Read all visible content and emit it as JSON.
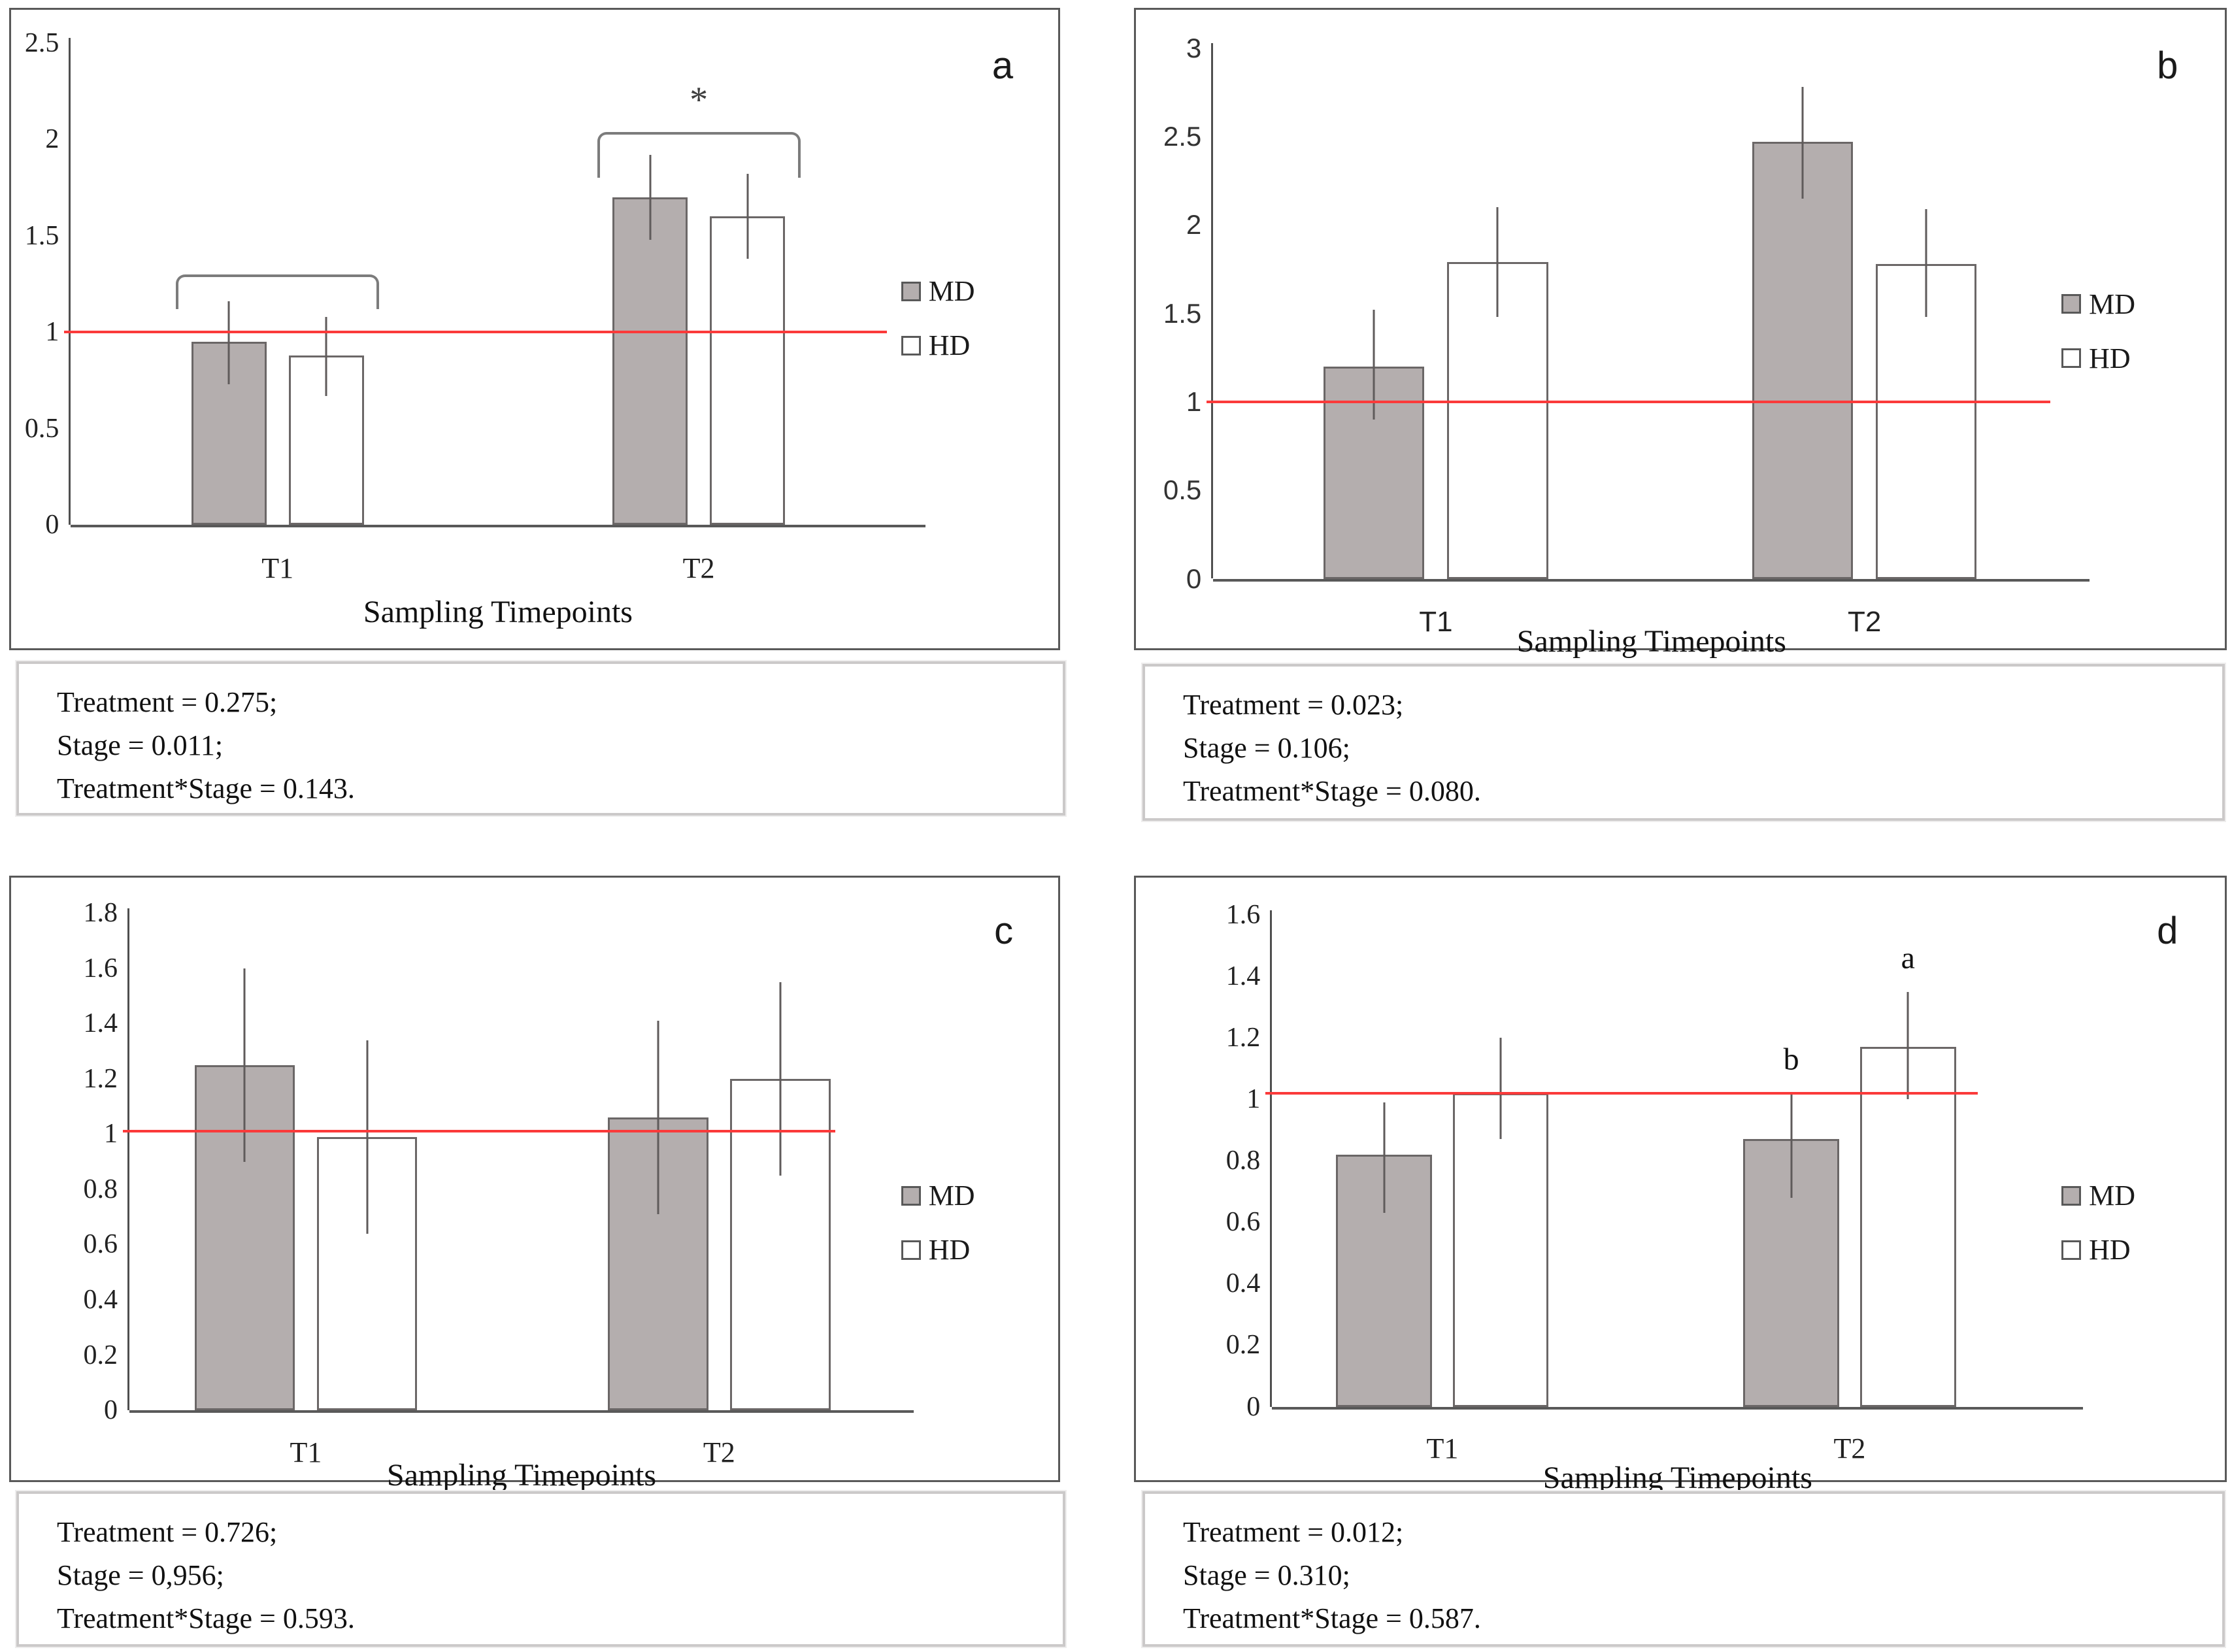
{
  "figure": {
    "description": "Four-panel bar figure comparing MD and HD treatments at two sampling timepoints",
    "legend": {
      "position": "right",
      "entries": [
        {
          "label": "MD",
          "fill": "#b4aeae"
        },
        {
          "label": "HD",
          "fill": "#ffffff"
        }
      ]
    },
    "colors": {
      "bar_fill_md": "#b4aeae",
      "bar_fill_hd": "#ffffff",
      "bar_border": "#6b6767",
      "error_bar": "#5f5b5b",
      "reference_line": "#fb3a3a",
      "axis": "#4f4f4f",
      "bracket": "#7c7c7c",
      "frame_border": "#595959",
      "stat_box_border": "#cbc9c9"
    }
  },
  "chart_data": [
    {
      "type": "bar",
      "panel_letter": "a",
      "xlabel": "Sampling Timepoints",
      "categories": [
        "T1",
        "T2"
      ],
      "series": [
        {
          "name": "MD",
          "values": [
            0.95,
            1.7
          ],
          "err_low": [
            0.73,
            1.48
          ],
          "err_high": [
            1.16,
            1.92
          ]
        },
        {
          "name": "HD",
          "values": [
            0.88,
            1.6
          ],
          "err_low": [
            0.67,
            1.38
          ],
          "err_high": [
            1.08,
            1.82
          ]
        }
      ],
      "ylim": [
        0,
        2.5
      ],
      "yticks": [
        {
          "v": 0,
          "label": "0"
        },
        {
          "v": 0.5,
          "label": "0.5"
        },
        {
          "v": 1,
          "label": "1"
        },
        {
          "v": 1.5,
          "label": "1.5"
        },
        {
          "v": 2,
          "label": "2"
        },
        {
          "v": 2.5,
          "label": "2.5"
        }
      ],
      "reference_line": 1.0,
      "tick_font": "serif",
      "grid": false,
      "annotations": {
        "brackets": [
          {
            "category": "T1",
            "y": 1.3,
            "drop": 0.18,
            "label": ""
          },
          {
            "category": "T2",
            "y": 2.04,
            "drop": 0.24,
            "label": "*"
          }
        ],
        "bar_labels": []
      },
      "stats": [
        "Treatment = 0.275;",
        "Stage = 0.011;",
        "Treatment*Stage = 0.143."
      ]
    },
    {
      "type": "bar",
      "panel_letter": "b",
      "xlabel": "Sampling Timepoints",
      "categories": [
        "T1",
        "T2"
      ],
      "series": [
        {
          "name": "MD",
          "values": [
            1.2,
            2.47
          ],
          "err_low": [
            0.9,
            2.15
          ],
          "err_high": [
            1.52,
            2.78
          ]
        },
        {
          "name": "HD",
          "values": [
            1.79,
            1.78
          ],
          "err_low": [
            1.48,
            1.48
          ],
          "err_high": [
            2.1,
            2.09
          ]
        }
      ],
      "ylim": [
        0,
        3
      ],
      "yticks": [
        {
          "v": 0,
          "label": "0"
        },
        {
          "v": 0.5,
          "label": "0.5"
        },
        {
          "v": 1,
          "label": "1"
        },
        {
          "v": 1.5,
          "label": "1.5"
        },
        {
          "v": 2,
          "label": "2"
        },
        {
          "v": 2.5,
          "label": "2.5"
        },
        {
          "v": 3,
          "label": "3"
        }
      ],
      "reference_line": 1.0,
      "tick_font": "sans",
      "grid": false,
      "annotations": {
        "brackets": [],
        "bar_labels": []
      },
      "stats": [
        "Treatment = 0.023;",
        "Stage = 0.106;",
        "Treatment*Stage = 0.080."
      ]
    },
    {
      "type": "bar",
      "panel_letter": "c",
      "xlabel": "Sampling Timepoints",
      "categories": [
        "T1",
        "T2"
      ],
      "series": [
        {
          "name": "MD",
          "values": [
            1.25,
            1.06
          ],
          "err_low": [
            0.9,
            0.71
          ],
          "err_high": [
            1.6,
            1.41
          ]
        },
        {
          "name": "HD",
          "values": [
            0.99,
            1.2
          ],
          "err_low": [
            0.64,
            0.85
          ],
          "err_high": [
            1.34,
            1.55
          ]
        }
      ],
      "ylim": [
        0,
        1.8
      ],
      "yticks": [
        {
          "v": 0,
          "label": "0"
        },
        {
          "v": 0.2,
          "label": "0.2"
        },
        {
          "v": 0.4,
          "label": "0.4"
        },
        {
          "v": 0.6,
          "label": "0.6"
        },
        {
          "v": 0.8,
          "label": "0.8"
        },
        {
          "v": 1,
          "label": "1"
        },
        {
          "v": 1.2,
          "label": "1.2"
        },
        {
          "v": 1.4,
          "label": "1.4"
        },
        {
          "v": 1.6,
          "label": "1.6"
        },
        {
          "v": 1.8,
          "label": "1.8"
        }
      ],
      "reference_line": 1.01,
      "tick_font": "serif",
      "grid": false,
      "annotations": {
        "brackets": [],
        "bar_labels": []
      },
      "stats": [
        "Treatment = 0.726;",
        "Stage = 0,956;",
        "Treatment*Stage = 0.593."
      ]
    },
    {
      "type": "bar",
      "panel_letter": "d",
      "xlabel": "Sampling Timepoints",
      "categories": [
        "T1",
        "T2"
      ],
      "series": [
        {
          "name": "MD",
          "values": [
            0.82,
            0.87
          ],
          "err_low": [
            0.63,
            0.68
          ],
          "err_high": [
            0.99,
            1.02
          ]
        },
        {
          "name": "HD",
          "values": [
            1.02,
            1.17
          ],
          "err_low": [
            0.87,
            1.0
          ],
          "err_high": [
            1.2,
            1.35
          ]
        }
      ],
      "ylim": [
        0,
        1.6
      ],
      "yticks": [
        {
          "v": 0,
          "label": "0"
        },
        {
          "v": 0.2,
          "label": "0.2"
        },
        {
          "v": 0.4,
          "label": "0.4"
        },
        {
          "v": 0.6,
          "label": "0.6"
        },
        {
          "v": 0.8,
          "label": "0.8"
        },
        {
          "v": 1,
          "label": "1"
        },
        {
          "v": 1.2,
          "label": "1.2"
        },
        {
          "v": 1.4,
          "label": "1.4"
        },
        {
          "v": 1.6,
          "label": "1.6"
        }
      ],
      "reference_line": 1.02,
      "tick_font": "serif",
      "grid": false,
      "annotations": {
        "brackets": [],
        "bar_labels": [
          {
            "category": "T2",
            "series": "MD",
            "text": "b",
            "y": 1.13
          },
          {
            "category": "T2",
            "series": "HD",
            "text": "a",
            "y": 1.46
          }
        ]
      },
      "stats": [
        "Treatment = 0.012;",
        "Stage = 0.310;",
        "Treatment*Stage = 0.587."
      ]
    }
  ]
}
